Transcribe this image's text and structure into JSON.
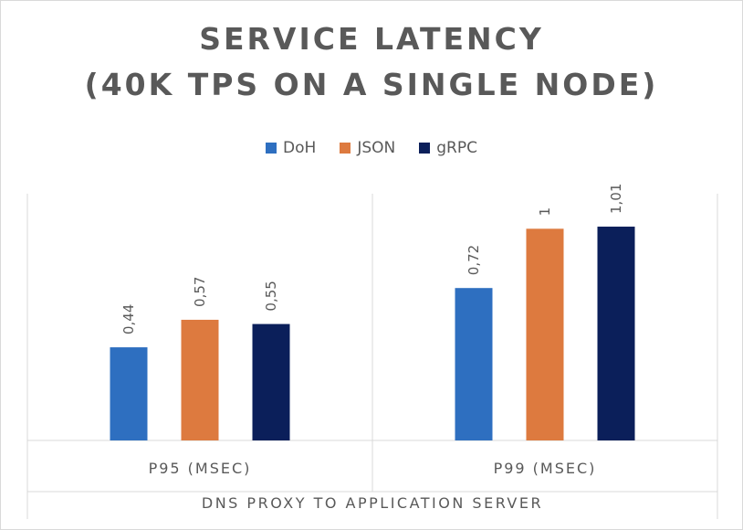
{
  "chart_data": {
    "type": "bar",
    "title": [
      "SERVICE LATENCY",
      "(40K TPS ON A SINGLE NODE)"
    ],
    "categories": [
      "P95 (MSEC)",
      "P99 (MSEC)"
    ],
    "group_label": "DNS PROXY TO APPLICATION SERVER",
    "series": [
      {
        "name": "DoH",
        "values": [
          0.44,
          0.72
        ],
        "labels": [
          "0,44",
          "0,72"
        ],
        "color": "#2e6fc0"
      },
      {
        "name": "JSON",
        "values": [
          0.57,
          1.0
        ],
        "labels": [
          "0,57",
          "1"
        ],
        "color": "#dd7a3f"
      },
      {
        "name": "gRPC",
        "values": [
          0.55,
          1.01
        ],
        "labels": [
          "0,55",
          "1,01"
        ],
        "color": "#0b1f5a"
      }
    ],
    "ylim": [
      0,
      1.2
    ],
    "grid": false,
    "legend_position": "top"
  }
}
